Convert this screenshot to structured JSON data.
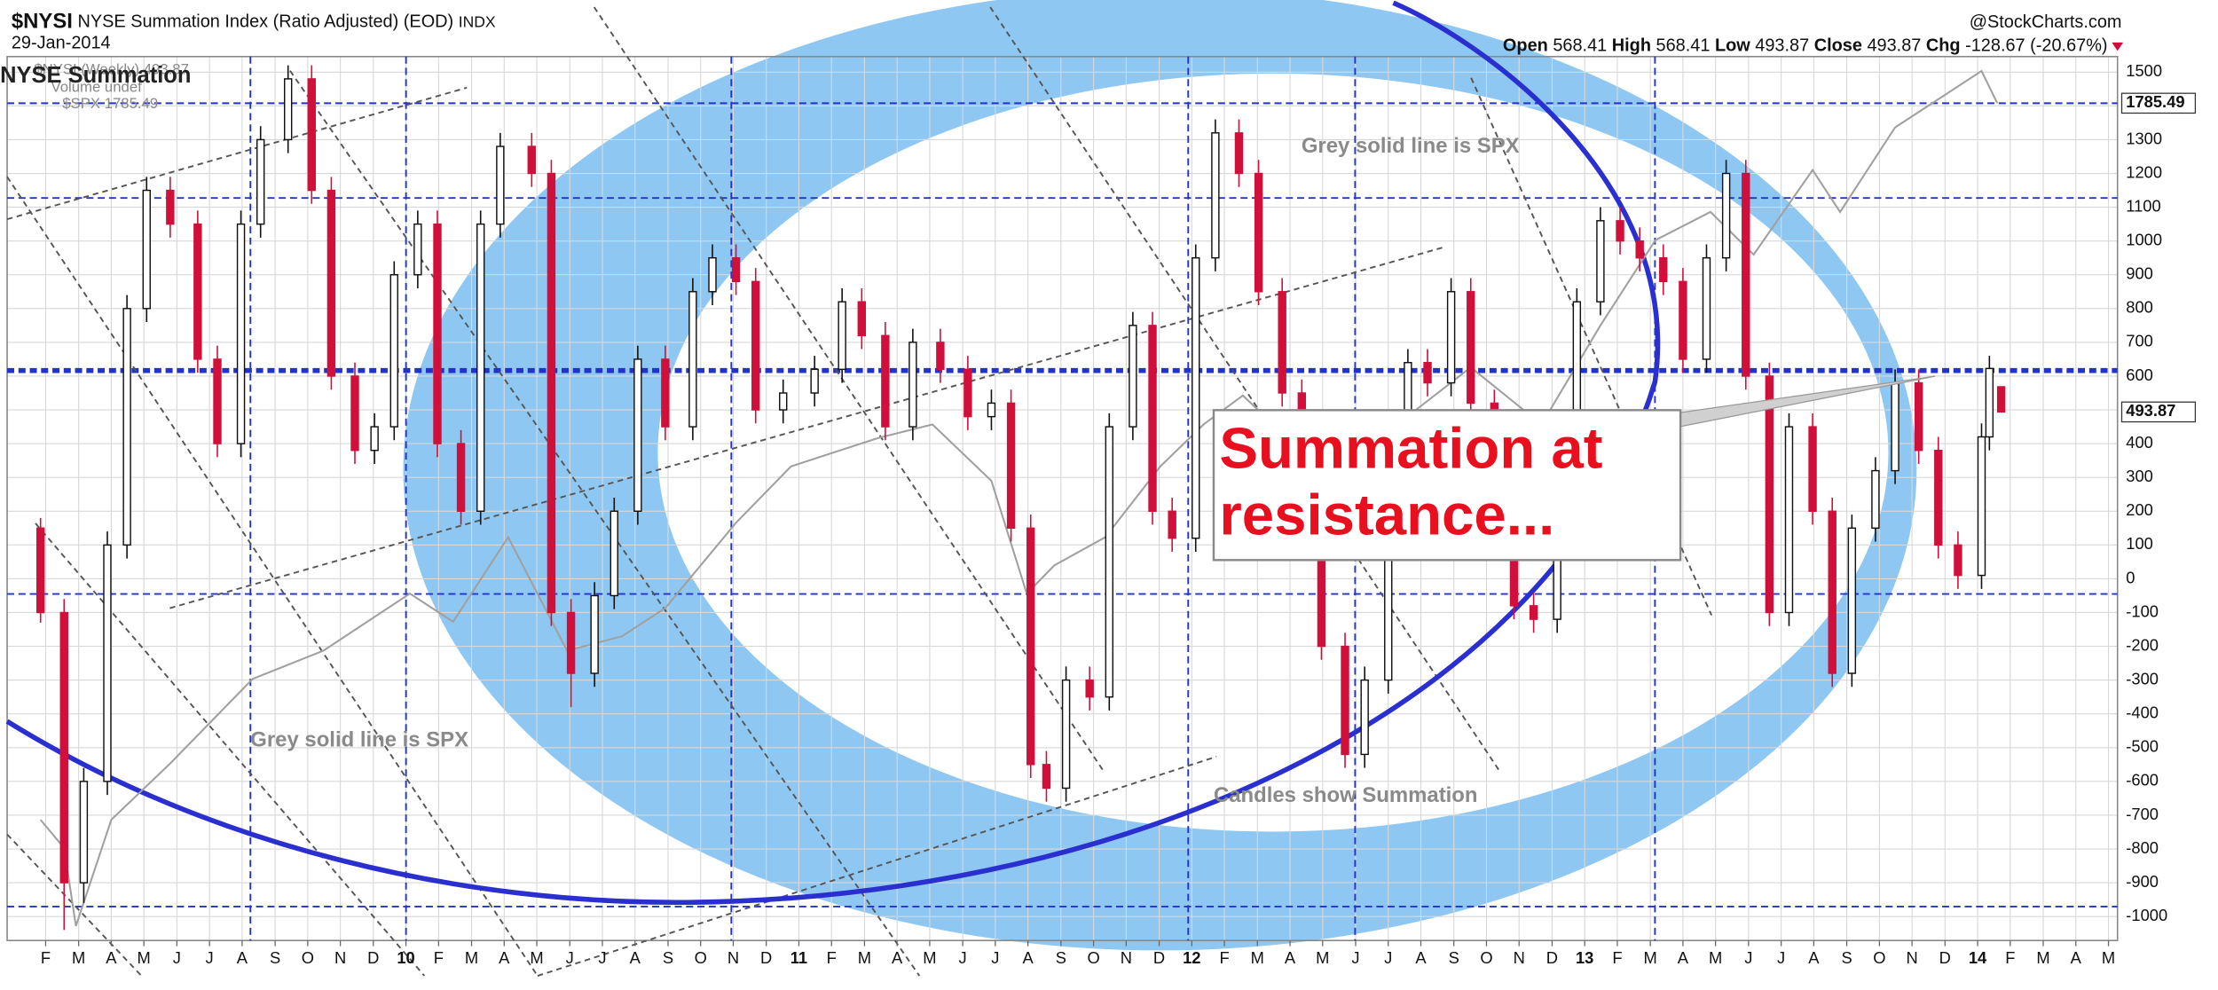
{
  "chart_data": {
    "type": "candlestick",
    "header": {
      "symbol": "$NYSI",
      "name": "NYSE Summation Index (Ratio Adjusted) (EOD)",
      "exchange": "INDX",
      "date": "29-Jan-2014",
      "source": "@StockCharts.com",
      "chg": "-128.67 (-20.67%)"
    },
    "ohlc_labels": [
      "Open",
      "High",
      "Low",
      "Close",
      "Chg"
    ],
    "overlay_title": "NYSE Summation",
    "name": "$NYSI (Weekly)",
    "volume_label": "Volume undef",
    "annotations": [
      "Grey solid line is SPX",
      "Grey solid line is SPX",
      "Candles show Summation",
      "Summation at resistance..."
    ],
    "up_color": "#ffffff",
    "down_color": "#d0103a",
    "xlim": [
      8.985,
      14.356
    ],
    "ylim": [
      -1071,
      1546
    ],
    "y2lim": [
      627,
      1850
    ],
    "grid": true,
    "yticks": [
      -1000,
      -900,
      -800,
      -700,
      -600,
      -500,
      -400,
      -300,
      -200,
      -100,
      0,
      100,
      200,
      300,
      400,
      500,
      600,
      700,
      800,
      900,
      1000,
      1100,
      1200,
      1300,
      1400,
      1500
    ],
    "xticks": [
      {
        "value": 9.083,
        "label": "F"
      },
      {
        "value": 9.167,
        "label": "M"
      },
      {
        "value": 9.25,
        "label": "A"
      },
      {
        "value": 9.333,
        "label": "M"
      },
      {
        "value": 9.417,
        "label": "J"
      },
      {
        "value": 9.5,
        "label": "J"
      },
      {
        "value": 9.583,
        "label": "A"
      },
      {
        "value": 9.667,
        "label": "S"
      },
      {
        "value": 9.75,
        "label": "O"
      },
      {
        "value": 9.833,
        "label": "N"
      },
      {
        "value": 9.917,
        "label": "D"
      },
      10,
      {
        "value": 10.083,
        "label": "F"
      },
      {
        "value": 10.167,
        "label": "M"
      },
      {
        "value": 10.25,
        "label": "A"
      },
      {
        "value": 10.333,
        "label": "M"
      },
      {
        "value": 10.417,
        "label": "J"
      },
      {
        "value": 10.5,
        "label": "J"
      },
      {
        "value": 10.583,
        "label": "A"
      },
      {
        "value": 10.667,
        "label": "S"
      },
      {
        "value": 10.75,
        "label": "O"
      },
      {
        "value": 10.833,
        "label": "N"
      },
      {
        "value": 10.917,
        "label": "D"
      },
      11,
      {
        "value": 11.083,
        "label": "F"
      },
      {
        "value": 11.167,
        "label": "M"
      },
      {
        "value": 11.25,
        "label": "A"
      },
      {
        "value": 11.333,
        "label": "M"
      },
      {
        "value": 11.417,
        "label": "J"
      },
      {
        "value": 11.5,
        "label": "J"
      },
      {
        "value": 11.583,
        "label": "A"
      },
      {
        "value": 11.667,
        "label": "S"
      },
      {
        "value": 11.75,
        "label": "O"
      },
      {
        "value": 11.833,
        "label": "N"
      },
      {
        "value": 11.917,
        "label": "D"
      },
      12,
      {
        "value": 12.083,
        "label": "F"
      },
      {
        "value": 12.167,
        "label": "M"
      },
      {
        "value": 12.25,
        "label": "A"
      },
      {
        "value": 12.333,
        "label": "M"
      },
      {
        "value": 12.417,
        "label": "J"
      },
      {
        "value": 12.5,
        "label": "J"
      },
      {
        "value": 12.583,
        "label": "A"
      },
      {
        "value": 12.667,
        "label": "S"
      },
      {
        "value": 12.75,
        "label": "O"
      },
      {
        "value": 12.833,
        "label": "N"
      },
      {
        "value": 12.917,
        "label": "D"
      },
      13,
      {
        "value": 13.083,
        "label": "F"
      },
      {
        "value": 13.167,
        "label": "M"
      },
      {
        "value": 13.25,
        "label": "A"
      },
      {
        "value": 13.333,
        "label": "M"
      },
      {
        "value": 13.417,
        "label": "J"
      },
      {
        "value": 13.5,
        "label": "J"
      },
      {
        "value": 13.583,
        "label": "A"
      },
      {
        "value": 13.667,
        "label": "S"
      },
      {
        "value": 13.75,
        "label": "O"
      },
      {
        "value": 13.833,
        "label": "N"
      },
      {
        "value": 13.917,
        "label": "D"
      },
      14,
      {
        "value": 14.083,
        "label": "F"
      },
      {
        "value": 14.167,
        "label": "M"
      },
      {
        "value": 14.25,
        "label": "A"
      },
      {
        "value": 14.333,
        "label": "M"
      }
    ],
    "x": [
      9.07,
      9.13,
      9.18,
      9.24,
      9.29,
      9.34,
      9.4,
      9.47,
      9.52,
      9.58,
      9.63,
      9.7,
      9.76,
      9.81,
      9.87,
      9.92,
      9.97,
      10.03,
      10.08,
      10.14,
      10.19,
      10.24,
      10.32,
      10.37,
      10.42,
      10.48,
      10.53,
      10.59,
      10.66,
      10.73,
      10.78,
      10.84,
      10.89,
      10.96,
      11.04,
      11.11,
      11.16,
      11.22,
      11.29,
      11.36,
      11.43,
      11.49,
      11.54,
      11.59,
      11.63,
      11.68,
      11.74,
      11.79,
      11.85,
      11.9,
      11.95,
      12.01,
      12.06,
      12.12,
      12.17,
      12.23,
      12.28,
      12.33,
      12.39,
      12.44,
      12.5,
      12.55,
      12.6,
      12.66,
      12.71,
      12.77,
      12.82,
      12.87,
      12.93,
      12.98,
      13.04,
      13.09,
      13.14,
      13.2,
      13.25,
      13.31,
      13.36,
      13.41,
      13.47,
      13.52,
      13.58,
      13.63,
      13.68,
      13.74,
      13.79,
      13.85,
      13.9,
      13.95,
      14.01,
      14.03,
      14.06
    ],
    "open": [
      150,
      -100,
      -900,
      -600,
      100,
      800,
      1150,
      1050,
      650,
      400,
      1050,
      1300,
      1480,
      1150,
      600,
      380,
      450,
      900,
      1050,
      400,
      200,
      1050,
      1280,
      1200,
      -100,
      -280,
      -50,
      200,
      650,
      450,
      850,
      950,
      880,
      500,
      550,
      620,
      820,
      720,
      450,
      700,
      620,
      480,
      520,
      150,
      -550,
      -620,
      -300,
      -350,
      450,
      750,
      200,
      120,
      950,
      1320,
      1200,
      850,
      550,
      280,
      -200,
      -520,
      -300,
      450,
      640,
      580,
      850,
      520,
      250,
      -80,
      -120,
      450,
      820,
      1060,
      1000,
      950,
      880,
      650,
      950,
      1200,
      600,
      -100,
      450,
      200,
      -280,
      150,
      320,
      580,
      380,
      100,
      10,
      420,
      568.41
    ],
    "high": [
      180,
      -60,
      -560,
      140,
      840,
      1190,
      1190,
      1090,
      690,
      1090,
      1340,
      1520,
      1520,
      1190,
      640,
      490,
      940,
      1090,
      1090,
      440,
      1090,
      1320,
      1320,
      1240,
      -60,
      -10,
      240,
      690,
      690,
      890,
      990,
      990,
      920,
      590,
      660,
      860,
      860,
      760,
      740,
      740,
      660,
      560,
      560,
      190,
      -510,
      -260,
      -260,
      490,
      790,
      790,
      240,
      990,
      1360,
      1360,
      1240,
      890,
      590,
      320,
      -160,
      -260,
      490,
      680,
      680,
      890,
      890,
      560,
      290,
      -40,
      490,
      860,
      1100,
      1100,
      1040,
      990,
      920,
      990,
      1240,
      1240,
      640,
      490,
      490,
      240,
      190,
      360,
      620,
      620,
      420,
      140,
      460,
      660,
      568.41
    ],
    "low": [
      -130,
      -1040,
      -960,
      -640,
      60,
      760,
      1010,
      610,
      360,
      360,
      1010,
      1260,
      1110,
      560,
      340,
      340,
      410,
      860,
      360,
      160,
      160,
      1010,
      1160,
      -140,
      -380,
      -320,
      -90,
      160,
      410,
      410,
      810,
      840,
      460,
      460,
      510,
      580,
      680,
      410,
      410,
      580,
      440,
      440,
      110,
      -590,
      -660,
      -660,
      -390,
      -390,
      410,
      160,
      80,
      80,
      910,
      1160,
      810,
      510,
      240,
      -240,
      -560,
      -560,
      -340,
      410,
      540,
      540,
      480,
      210,
      -120,
      -160,
      -160,
      410,
      780,
      960,
      910,
      840,
      610,
      610,
      910,
      560,
      -140,
      -140,
      160,
      -320,
      -320,
      110,
      280,
      340,
      60,
      -30,
      -30,
      380,
      493.87
    ],
    "close": [
      -100,
      -900,
      -600,
      100,
      800,
      1150,
      1050,
      650,
      400,
      1050,
      1300,
      1480,
      1150,
      600,
      380,
      450,
      900,
      1050,
      400,
      200,
      1050,
      1280,
      1200,
      -100,
      -280,
      -50,
      200,
      650,
      450,
      850,
      950,
      880,
      500,
      550,
      620,
      820,
      720,
      450,
      700,
      620,
      480,
      520,
      150,
      -550,
      -620,
      -300,
      -350,
      450,
      750,
      200,
      120,
      950,
      1320,
      1200,
      850,
      550,
      280,
      -200,
      -520,
      -300,
      450,
      640,
      580,
      850,
      520,
      250,
      -80,
      -120,
      450,
      820,
      1060,
      1000,
      950,
      880,
      650,
      950,
      1200,
      600,
      -100,
      450,
      200,
      -280,
      150,
      320,
      580,
      380,
      100,
      10,
      420,
      622.54,
      493.87
    ],
    "series": [
      {
        "name": "$SPX",
        "color": "#a0a0a0",
        "axis": "y2",
        "x": [
          9.07,
          9.13,
          9.16,
          9.25,
          9.4,
          9.61,
          9.79,
          10.01,
          10.12,
          10.26,
          10.41,
          10.55,
          10.66,
          10.84,
          10.98,
          11.2,
          11.34,
          11.49,
          11.58,
          11.65,
          11.78,
          11.92,
          12.03,
          12.13,
          12.32,
          12.42,
          12.57,
          12.71,
          12.89,
          13.04,
          13.18,
          13.32,
          13.43,
          13.58,
          13.65,
          13.79,
          13.9,
          14.01,
          14.05
        ],
        "values": [
          794,
          755,
          647,
          794,
          872,
          989,
          1028,
          1107,
          1068,
          1185,
          1028,
          1048,
          1087,
          1205,
          1283,
          1322,
          1341,
          1263,
          1107,
          1146,
          1185,
          1283,
          1341,
          1381,
          1283,
          1244,
          1361,
          1420,
          1341,
          1478,
          1596,
          1635,
          1576,
          1693,
          1635,
          1752,
          1791,
          1830,
          1785.49
        ]
      }
    ]
  }
}
